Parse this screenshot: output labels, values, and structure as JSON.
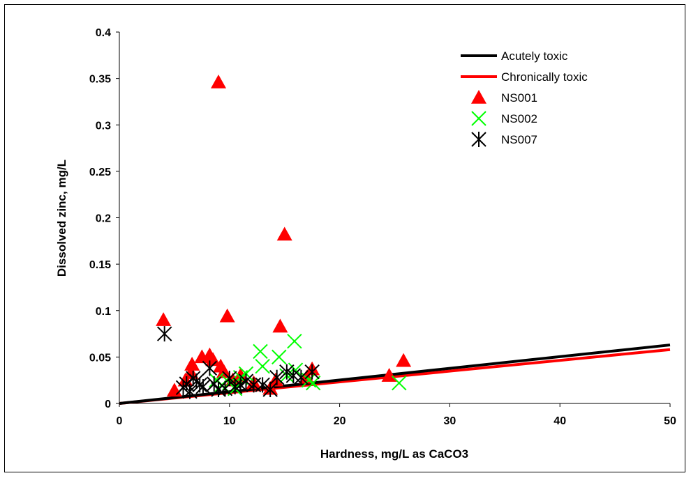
{
  "chart_data": {
    "type": "scatter",
    "title": "",
    "xlabel": "Hardness, mg/L as CaCO3",
    "ylabel": "Dissolved zinc, mg/L",
    "xlim": [
      0,
      50
    ],
    "ylim": [
      0,
      0.4
    ],
    "x_ticks": [
      0,
      10,
      20,
      30,
      40,
      50
    ],
    "y_ticks": [
      0,
      0.05,
      0.1,
      0.15,
      0.2,
      0.25,
      0.3,
      0.35,
      0.4
    ],
    "x_tick_labels": [
      "0",
      "10",
      "20",
      "30",
      "40",
      "50"
    ],
    "y_tick_labels": [
      "0",
      "0.05",
      "0.1",
      "0.15",
      "0.2",
      "0.25",
      "0.3",
      "0.35",
      "0.4"
    ],
    "grid": false,
    "legend_position": "top-right",
    "lines": [
      {
        "name": "Acutely toxic",
        "color": "#000000",
        "x": [
          0,
          50
        ],
        "y": [
          0,
          0.063
        ]
      },
      {
        "name": "Chronically toxic",
        "color": "#ff0000",
        "x": [
          0,
          50
        ],
        "y": [
          0,
          0.058
        ]
      }
    ],
    "series": [
      {
        "name": "NS001",
        "marker": "triangle",
        "color": "#ff0000",
        "points": [
          [
            4.0,
            0.09
          ],
          [
            9.0,
            0.346
          ],
          [
            15.0,
            0.182
          ],
          [
            9.8,
            0.094
          ],
          [
            14.6,
            0.083
          ],
          [
            5.0,
            0.014
          ],
          [
            6.0,
            0.025
          ],
          [
            6.5,
            0.033
          ],
          [
            6.6,
            0.042
          ],
          [
            7.5,
            0.05
          ],
          [
            8.2,
            0.052
          ],
          [
            8.5,
            0.047
          ],
          [
            9.2,
            0.04
          ],
          [
            9.5,
            0.034
          ],
          [
            10.3,
            0.025
          ],
          [
            11.0,
            0.03
          ],
          [
            12.2,
            0.022
          ],
          [
            13.7,
            0.016
          ],
          [
            14.2,
            0.025
          ],
          [
            17.0,
            0.028
          ],
          [
            17.5,
            0.037
          ],
          [
            24.5,
            0.03
          ],
          [
            25.8,
            0.046
          ]
        ]
      },
      {
        "name": "NS002",
        "marker": "x",
        "color": "#00ff00",
        "points": [
          [
            8.8,
            0.025
          ],
          [
            9.3,
            0.02
          ],
          [
            10.0,
            0.022
          ],
          [
            10.5,
            0.016
          ],
          [
            11.0,
            0.028
          ],
          [
            11.5,
            0.032
          ],
          [
            12.8,
            0.056
          ],
          [
            13.0,
            0.04
          ],
          [
            14.5,
            0.05
          ],
          [
            15.9,
            0.067
          ],
          [
            15.2,
            0.03
          ],
          [
            16.0,
            0.036
          ],
          [
            17.2,
            0.025
          ],
          [
            17.6,
            0.022
          ],
          [
            25.4,
            0.022
          ]
        ]
      },
      {
        "name": "NS007",
        "marker": "asterisk",
        "color": "#000000",
        "points": [
          [
            4.1,
            0.075
          ],
          [
            5.8,
            0.017
          ],
          [
            6.1,
            0.021
          ],
          [
            6.4,
            0.013
          ],
          [
            6.7,
            0.027
          ],
          [
            7.0,
            0.024
          ],
          [
            7.3,
            0.02
          ],
          [
            7.6,
            0.018
          ],
          [
            8.2,
            0.038
          ],
          [
            8.6,
            0.021
          ],
          [
            9.0,
            0.015
          ],
          [
            9.6,
            0.016
          ],
          [
            10.0,
            0.027
          ],
          [
            10.5,
            0.018
          ],
          [
            11.0,
            0.02
          ],
          [
            11.5,
            0.024
          ],
          [
            12.2,
            0.02
          ],
          [
            13.0,
            0.02
          ],
          [
            13.7,
            0.015
          ],
          [
            14.3,
            0.028
          ],
          [
            15.2,
            0.034
          ],
          [
            15.8,
            0.03
          ],
          [
            16.5,
            0.028
          ],
          [
            17.5,
            0.034
          ]
        ]
      }
    ]
  }
}
